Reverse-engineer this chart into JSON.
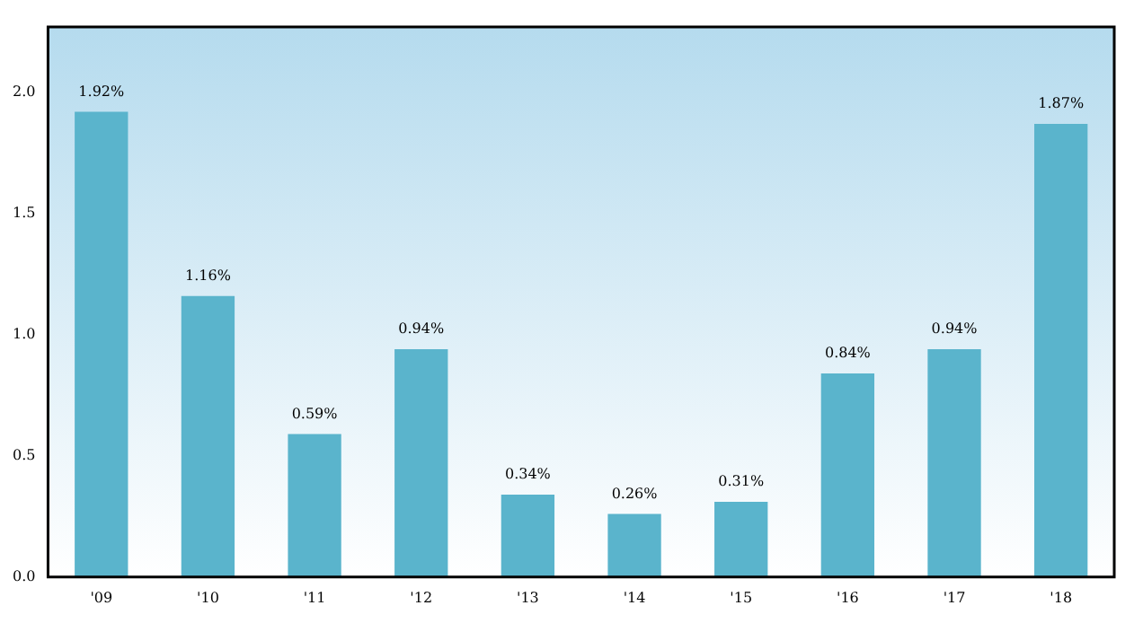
{
  "chart_data": {
    "type": "bar",
    "categories": [
      "'09",
      "'10",
      "'11",
      "'12",
      "'13",
      "'14",
      "'15",
      "'16",
      "'17",
      "'18"
    ],
    "values": [
      1.92,
      1.16,
      0.59,
      0.94,
      0.34,
      0.26,
      0.31,
      0.84,
      0.94,
      1.87
    ],
    "value_labels": [
      "1.92%",
      "1.16%",
      "0.59%",
      "0.94%",
      "0.34%",
      "0.26%",
      "0.31%",
      "0.84%",
      "0.94%",
      "1.87%"
    ],
    "color": "#5ab4cc",
    "ylim": [
      0,
      2.27
    ],
    "yticks": [
      {
        "value": 0,
        "label": "0.0"
      },
      {
        "value": 0.5,
        "label": "0.5"
      },
      {
        "value": 1,
        "label": "1.0"
      },
      {
        "value": 1.5,
        "label": "1.5"
      },
      {
        "value": 2,
        "label": "2.0"
      }
    ],
    "grid": false,
    "legend": false
  }
}
